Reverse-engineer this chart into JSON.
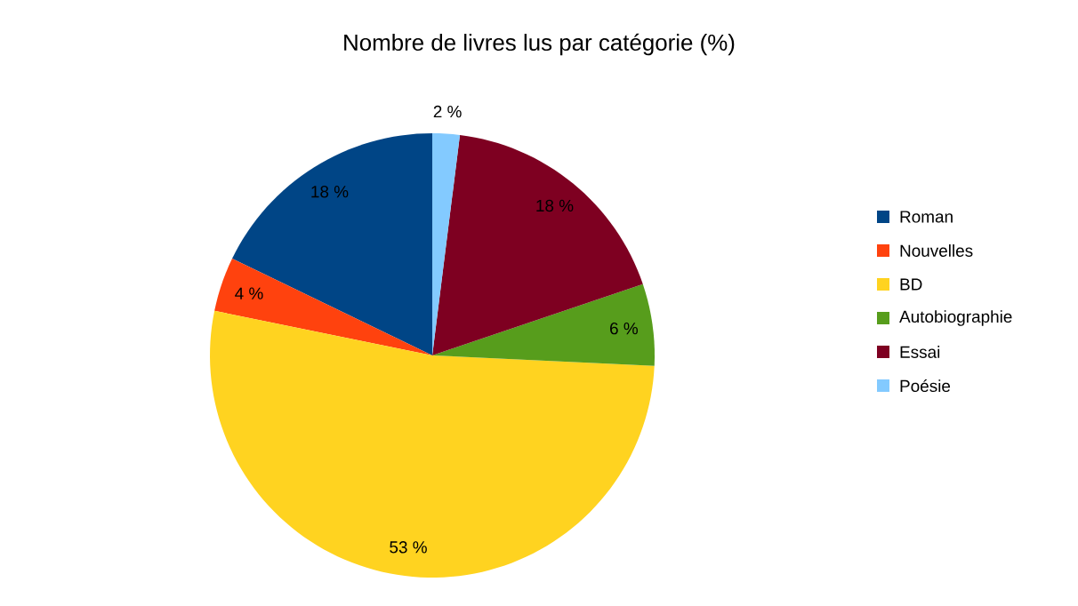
{
  "chart_data": {
    "type": "pie",
    "title": "Nombre de livres lus par catégorie (%)",
    "categories": [
      "Roman",
      "Nouvelles",
      "BD",
      "Autobiographie",
      "Essai",
      "Poésie"
    ],
    "values": [
      18,
      4,
      53,
      6,
      18,
      2
    ],
    "colors": [
      "#004586",
      "#ff420e",
      "#ffd320",
      "#579d1c",
      "#7e0021",
      "#83caff"
    ],
    "value_labels": [
      "18 %",
      "4 %",
      "53 %",
      "6 %",
      "18 %",
      "2 %"
    ],
    "legend": "right"
  }
}
